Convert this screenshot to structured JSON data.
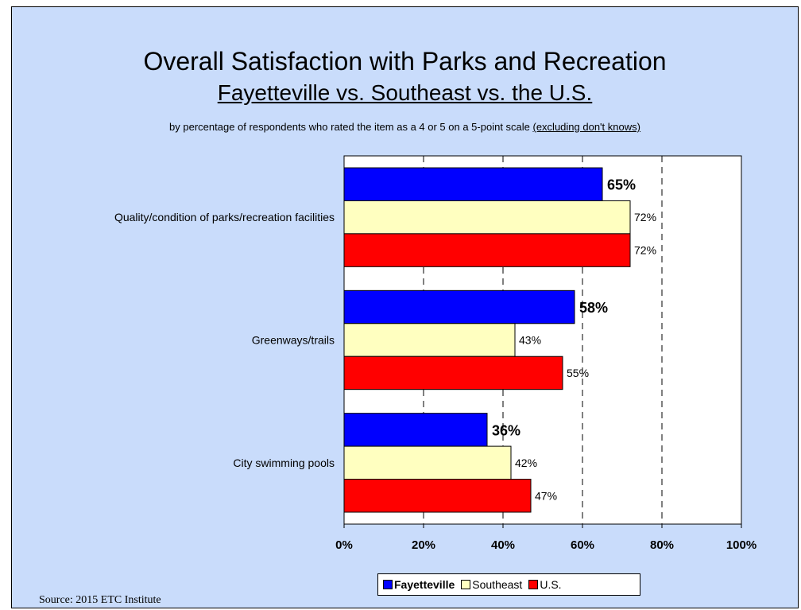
{
  "title": "Overall Satisfaction with Parks and Recreation",
  "subtitle": "Fayetteville vs. Southeast vs. the U.S.",
  "note_prefix": "by percentage of respondents who rated the item as a 4 or 5 on a 5-point scale ",
  "note_underlined": "(excluding don't knows)",
  "source": "Source:  2015 ETC Institute",
  "colors": {
    "Fayetteville": "#0000ff",
    "Southeast": "#ffffc0",
    "U.S.": "#ff0000",
    "plot_bg": "#ffffff"
  },
  "chart_data": {
    "type": "bar",
    "orientation": "horizontal",
    "categories": [
      "Quality/condition of parks/recreation facilities",
      "Greenways/trails",
      "City swimming pools"
    ],
    "series": [
      {
        "name": "Fayetteville",
        "values": [
          65,
          58,
          36
        ],
        "labels": [
          "65%",
          "58%",
          "36%"
        ]
      },
      {
        "name": "Southeast",
        "values": [
          72,
          43,
          42
        ],
        "labels": [
          "72%",
          "43%",
          "42%"
        ]
      },
      {
        "name": "U.S.",
        "values": [
          72,
          55,
          47
        ],
        "labels": [
          "72%",
          "55%",
          "47%"
        ]
      }
    ],
    "xlim": [
      0,
      100
    ],
    "x_ticks": [
      "0%",
      "20%",
      "40%",
      "60%",
      "80%",
      "100%"
    ],
    "grid": "vertical dashed",
    "legend_position": "bottom"
  }
}
